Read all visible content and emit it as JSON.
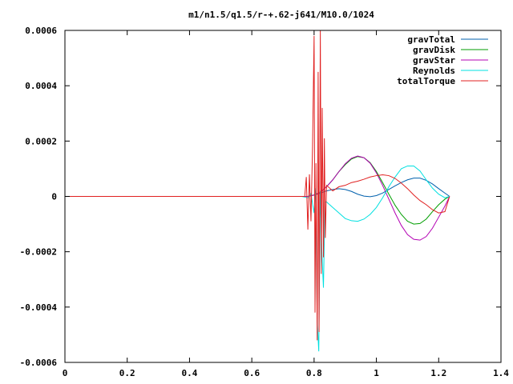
{
  "chart_data": {
    "type": "line",
    "title": "m1/n1.5/q1.5/r-+.62-j641/M10.0/1024",
    "xlabel": "",
    "ylabel": "",
    "xlim": [
      0,
      1.4
    ],
    "ylim": [
      -0.0006,
      0.0006
    ],
    "grid": false,
    "legend_position": "top-right",
    "x_ticks": [
      0,
      0.2,
      0.4,
      0.6,
      0.8,
      1,
      1.2,
      1.4
    ],
    "x_tick_labels": [
      "0",
      "0.2",
      "0.4",
      "0.6",
      "0.8",
      "1",
      "1.2",
      "1.4"
    ],
    "y_ticks": [
      0.0006,
      0.0004,
      0.0002,
      0,
      -0.0002,
      -0.0004,
      -0.0006
    ],
    "y_tick_labels": [
      "0.0006",
      "0.0004",
      "0.0002",
      "0",
      "-0.0002",
      "-0.0004",
      "-0.0006"
    ],
    "series": [
      {
        "name": "gravTotal",
        "color": "#0060ad",
        "x": [
          0,
          0.78,
          0.8,
          0.82,
          0.84,
          0.86,
          0.88,
          0.9,
          0.92,
          0.94,
          0.96,
          0.98,
          1.0,
          1.02,
          1.04,
          1.06,
          1.08,
          1.1,
          1.12,
          1.14,
          1.16,
          1.18,
          1.2,
          1.22,
          1.235
        ],
        "y": [
          0,
          0,
          5e-06,
          1.2e-05,
          2e-05,
          2.5e-05,
          2.8e-05,
          2.5e-05,
          1.8e-05,
          8e-06,
          1e-06,
          -1e-06,
          3e-06,
          1.2e-05,
          2.5e-05,
          3.8e-05,
          5e-05,
          6e-05,
          6.6e-05,
          6.6e-05,
          5.8e-05,
          4.5e-05,
          2.8e-05,
          1.2e-05,
          0
        ]
      },
      {
        "name": "gravDisk",
        "color": "#009e00",
        "x": [
          0,
          0.78,
          0.8,
          0.82,
          0.84,
          0.86,
          0.88,
          0.9,
          0.92,
          0.94,
          0.96,
          0.98,
          1.0,
          1.02,
          1.04,
          1.06,
          1.08,
          1.1,
          1.12,
          1.14,
          1.16,
          1.18,
          1.2,
          1.22,
          1.235
        ],
        "y": [
          0,
          0,
          5e-06,
          1.5e-05,
          3.5e-05,
          6e-05,
          9e-05,
          0.000115,
          0.000135,
          0.000144,
          0.00014,
          0.000122,
          9e-05,
          5e-05,
          8e-06,
          -3.2e-05,
          -6.5e-05,
          -9e-05,
          -0.0001,
          -9.8e-05,
          -8.2e-05,
          -5.5e-05,
          -3e-05,
          -1e-05,
          0
        ]
      },
      {
        "name": "gravStar",
        "color": "#b300b3",
        "x": [
          0,
          0.78,
          0.8,
          0.82,
          0.84,
          0.86,
          0.88,
          0.9,
          0.92,
          0.94,
          0.96,
          0.98,
          1.0,
          1.02,
          1.04,
          1.06,
          1.08,
          1.1,
          1.12,
          1.14,
          1.16,
          1.18,
          1.2,
          1.22,
          1.235
        ],
        "y": [
          0,
          0,
          5e-06,
          1.5e-05,
          3.5e-05,
          6e-05,
          9e-05,
          0.000118,
          0.000138,
          0.000146,
          0.00014,
          0.00012,
          8.5e-05,
          4e-05,
          -1e-05,
          -6e-05,
          -0.000105,
          -0.000138,
          -0.000155,
          -0.000158,
          -0.000145,
          -0.000115,
          -7.5e-05,
          -3.5e-05,
          0
        ]
      },
      {
        "name": "Reynolds",
        "color": "#00e0e0",
        "x": [
          0,
          0.76,
          0.78,
          0.79,
          0.8,
          0.805,
          0.81,
          0.815,
          0.82,
          0.825,
          0.83,
          0.835,
          0.84,
          0.86,
          0.88,
          0.9,
          0.92,
          0.94,
          0.96,
          0.98,
          1.0,
          1.02,
          1.04,
          1.06,
          1.08,
          1.1,
          1.12,
          1.14,
          1.16,
          1.18,
          1.2,
          1.22,
          1.235
        ],
        "y": [
          0,
          0,
          -5e-06,
          1e-05,
          -6e-05,
          3e-05,
          -0.00045,
          -0.00056,
          2e-05,
          -0.0002,
          -0.00033,
          -2e-05,
          -2e-05,
          -4e-05,
          -6e-05,
          -8e-05,
          -8.8e-05,
          -9e-05,
          -8.2e-05,
          -6.5e-05,
          -4e-05,
          -5e-06,
          3.5e-05,
          7e-05,
          0.0001,
          0.00011,
          0.00011,
          9.2e-05,
          6e-05,
          3e-05,
          8e-06,
          -5e-06,
          0
        ]
      },
      {
        "name": "totalTorque",
        "color": "#e02020",
        "x": [
          0,
          0.77,
          0.775,
          0.78,
          0.785,
          0.79,
          0.795,
          0.8,
          0.803,
          0.806,
          0.81,
          0.813,
          0.816,
          0.82,
          0.823,
          0.826,
          0.83,
          0.833,
          0.836,
          0.84,
          0.86,
          0.88,
          0.9,
          0.92,
          0.94,
          0.96,
          0.98,
          1.0,
          1.02,
          1.04,
          1.06,
          1.08,
          1.1,
          1.12,
          1.14,
          1.16,
          1.18,
          1.2,
          1.22,
          1.235
        ],
        "y": [
          0,
          0,
          7e-05,
          -0.00012,
          8e-05,
          -9e-05,
          0.00018,
          0.00058,
          -0.00042,
          0.00012,
          -0.00052,
          0.00045,
          -0.00049,
          0.0006,
          -0.00028,
          0.00032,
          -0.00022,
          0.00021,
          -0.00015,
          4e-05,
          2e-05,
          3.5e-05,
          4e-05,
          5e-05,
          5.5e-05,
          6.2e-05,
          7e-05,
          7.5e-05,
          7.8e-05,
          7.5e-05,
          6.5e-05,
          4.8e-05,
          2.8e-05,
          5e-06,
          -1.5e-05,
          -3e-05,
          -4.8e-05,
          -6e-05,
          -5.5e-05,
          0
        ]
      }
    ]
  }
}
